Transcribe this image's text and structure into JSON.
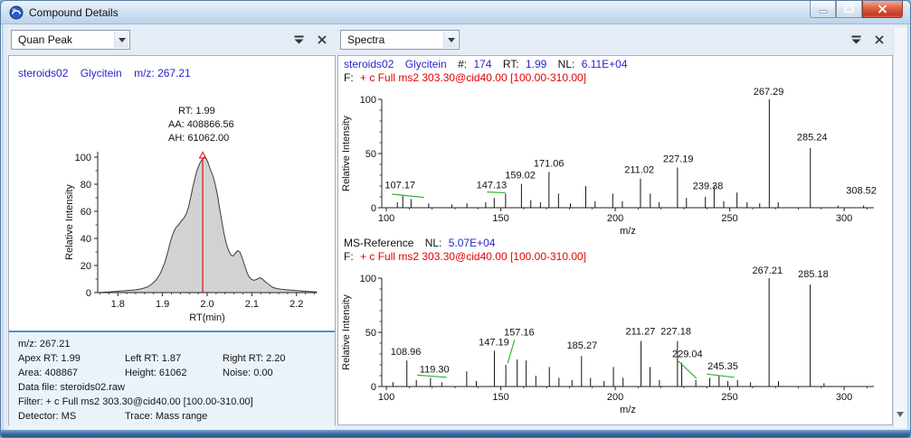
{
  "window": {
    "title": "Compound Details"
  },
  "icons": {
    "app": "xcalibur-logo",
    "dropdown": "chevron-down",
    "panel_menu": "collapse-chevron",
    "panel_close": "x-mark",
    "minimize": "minimize-bar",
    "maximize": "maximize-square",
    "window_close": "x-mark",
    "scroll_down": "triangle-down"
  },
  "left_panel": {
    "selector_value": "Quan Peak",
    "header": {
      "sample": "steroids02",
      "compound": "Glycitein",
      "mz": "m/z: 267.21"
    },
    "annotations": {
      "rt": "RT: 1.99",
      "aa": "AA: 408866.56",
      "ah": "AH: 61062.00"
    },
    "info": {
      "mz": "m/z: 267.21",
      "apex_rt": "Apex RT: 1.99",
      "left_rt": "Left RT: 1.87",
      "right_rt": "Right RT: 2.20",
      "area": "Area: 408867",
      "height": "Height: 61062",
      "noise": "Noise: 0.00",
      "data_file": "Data file: steroids02.raw",
      "filter": "Filter: + c Full ms2 303.30@cid40.00 [100.00-310.00]",
      "detector": "Detector: MS",
      "trace": "Trace: Mass range"
    }
  },
  "right_panel": {
    "selector_value": "Spectra",
    "top_header": {
      "sample": "steroids02",
      "compound": "Glycitein",
      "scan_label": "#:",
      "scan": "174",
      "rt_label": "RT:",
      "rt": "1.99",
      "nl_label": "NL:",
      "nl": "6.11E+04",
      "f_label": "F:",
      "filter": "+ c Full ms2 303.30@cid40.00 [100.00-310.00]"
    },
    "ref_header": {
      "name": "MS-Reference",
      "nl_label": "NL:",
      "nl": "5.07E+04",
      "f_label": "F:",
      "filter": "+ c Full ms2 303.30@cid40.00 [100.00-310.00]"
    }
  },
  "colors": {
    "accent_blue_text": "#2626cc",
    "red_text": "#e60000",
    "green_match": "#2fb52f",
    "peak_fill": "#d2d2d2",
    "marker_red": "#e02020"
  },
  "chart_data": [
    {
      "name": "quan-peak-chromatogram",
      "type": "area",
      "xlabel": "RT(min)",
      "ylabel": "Relative Intensity",
      "xlim": [
        1.755,
        2.245
      ],
      "ylim": [
        0,
        104
      ],
      "xticks": [
        1.8,
        1.9,
        2.0,
        2.1,
        2.2
      ],
      "yticks": [
        0,
        20,
        40,
        60,
        80,
        100
      ],
      "apex_rt": 1.99,
      "marker_x": 1.99,
      "marker_y": 99,
      "points": [
        [
          1.755,
          0
        ],
        [
          1.78,
          0.5
        ],
        [
          1.8,
          1
        ],
        [
          1.82,
          1.5
        ],
        [
          1.84,
          2
        ],
        [
          1.855,
          3
        ],
        [
          1.865,
          4
        ],
        [
          1.875,
          6
        ],
        [
          1.885,
          9
        ],
        [
          1.895,
          14
        ],
        [
          1.905,
          22
        ],
        [
          1.912,
          30
        ],
        [
          1.918,
          38
        ],
        [
          1.924,
          44
        ],
        [
          1.93,
          48
        ],
        [
          1.936,
          50
        ],
        [
          1.942,
          53
        ],
        [
          1.948,
          55
        ],
        [
          1.953,
          58
        ],
        [
          1.958,
          63
        ],
        [
          1.963,
          70
        ],
        [
          1.968,
          78
        ],
        [
          1.973,
          85
        ],
        [
          1.978,
          91
        ],
        [
          1.983,
          95
        ],
        [
          1.988,
          98
        ],
        [
          1.993,
          100
        ],
        [
          1.998,
          99
        ],
        [
          2.003,
          95
        ],
        [
          2.008,
          90
        ],
        [
          2.013,
          86
        ],
        [
          2.018,
          80
        ],
        [
          2.023,
          72
        ],
        [
          2.028,
          62
        ],
        [
          2.033,
          52
        ],
        [
          2.038,
          43
        ],
        [
          2.043,
          36
        ],
        [
          2.048,
          31
        ],
        [
          2.053,
          28
        ],
        [
          2.058,
          27
        ],
        [
          2.063,
          29
        ],
        [
          2.068,
          31
        ],
        [
          2.073,
          30
        ],
        [
          2.078,
          26
        ],
        [
          2.083,
          21
        ],
        [
          2.088,
          16
        ],
        [
          2.093,
          12
        ],
        [
          2.098,
          10
        ],
        [
          2.105,
          9
        ],
        [
          2.112,
          10
        ],
        [
          2.118,
          11
        ],
        [
          2.124,
          10
        ],
        [
          2.13,
          8
        ],
        [
          2.138,
          6
        ],
        [
          2.146,
          4
        ],
        [
          2.155,
          3
        ],
        [
          2.165,
          2.5
        ],
        [
          2.18,
          2
        ],
        [
          2.2,
          1.5
        ],
        [
          2.22,
          1
        ],
        [
          2.245,
          0.5
        ]
      ]
    },
    {
      "name": "ms2-spectrum",
      "type": "bar",
      "xlabel": "m/z",
      "ylabel": "Relative Intensity",
      "xlim": [
        98,
        313
      ],
      "ylim": [
        0,
        100
      ],
      "xticks": [
        100,
        150,
        200,
        250,
        300
      ],
      "yticks": [
        0,
        50,
        100
      ],
      "peaks": [
        {
          "mz": 104.8,
          "i": 5
        },
        {
          "mz": 107.17,
          "i": 11,
          "label": "107.17",
          "lx": 106,
          "ly": 18
        },
        {
          "mz": 110.8,
          "i": 8
        },
        {
          "mz": 118.5,
          "i": 4
        },
        {
          "mz": 128.6,
          "i": 3
        },
        {
          "mz": 135.2,
          "i": 4
        },
        {
          "mz": 143.4,
          "i": 5
        },
        {
          "mz": 147.13,
          "i": 9,
          "label": "147.13",
          "lx": 146,
          "ly": 18
        },
        {
          "mz": 152.1,
          "i": 13
        },
        {
          "mz": 159.02,
          "i": 22,
          "label": "159.02",
          "lx": 158.5,
          "ly": 27
        },
        {
          "mz": 163.1,
          "i": 7
        },
        {
          "mz": 167.3,
          "i": 5
        },
        {
          "mz": 171.06,
          "i": 33,
          "label": "171.06",
          "lx": 171,
          "ly": 38
        },
        {
          "mz": 175.2,
          "i": 13
        },
        {
          "mz": 180.4,
          "i": 4
        },
        {
          "mz": 187.1,
          "i": 20
        },
        {
          "mz": 191.2,
          "i": 6
        },
        {
          "mz": 198.9,
          "i": 13
        },
        {
          "mz": 203.1,
          "i": 6
        },
        {
          "mz": 211.02,
          "i": 27,
          "label": "211.02",
          "lx": 210.5,
          "ly": 32
        },
        {
          "mz": 215.3,
          "i": 13
        },
        {
          "mz": 219.2,
          "i": 5
        },
        {
          "mz": 227.19,
          "i": 37,
          "label": "227.19",
          "lx": 227.5,
          "ly": 42
        },
        {
          "mz": 231.1,
          "i": 9
        },
        {
          "mz": 239.38,
          "i": 10,
          "label": "239.38",
          "lx": 240.5,
          "ly": 17
        },
        {
          "mz": 243.2,
          "i": 20
        },
        {
          "mz": 247.4,
          "i": 6
        },
        {
          "mz": 253.2,
          "i": 14
        },
        {
          "mz": 257.6,
          "i": 5
        },
        {
          "mz": 263.1,
          "i": 4
        },
        {
          "mz": 267.29,
          "i": 100,
          "label": "267.29",
          "lx": 267,
          "ly": 104
        },
        {
          "mz": 271.2,
          "i": 5
        },
        {
          "mz": 285.24,
          "i": 55,
          "label": "285.24",
          "lx": 286,
          "ly": 62
        },
        {
          "mz": 297.3,
          "i": 2
        },
        {
          "mz": 308.52,
          "i": 2,
          "label": "308.52",
          "lx": 307.5,
          "ly": 13
        }
      ],
      "green_lines": [
        [
          102.5,
          12.5,
          116.5,
          9.5
        ],
        [
          144,
          14.5,
          152,
          13.8
        ]
      ]
    },
    {
      "name": "ms2-reference-spectrum",
      "type": "bar",
      "xlabel": "m/z",
      "ylabel": "Relative Intensity",
      "xlim": [
        98,
        313
      ],
      "ylim": [
        0,
        100
      ],
      "xticks": [
        100,
        150,
        200,
        250,
        300
      ],
      "yticks": [
        0,
        50,
        100
      ],
      "peaks": [
        {
          "mz": 102.9,
          "i": 4
        },
        {
          "mz": 108.96,
          "i": 24,
          "label": "108.96",
          "lx": 108.5,
          "ly": 29
        },
        {
          "mz": 113.1,
          "i": 6
        },
        {
          "mz": 119.3,
          "i": 8,
          "label": "119.30",
          "lx": 121,
          "ly": 13
        },
        {
          "mz": 124.2,
          "i": 4
        },
        {
          "mz": 135.1,
          "i": 14
        },
        {
          "mz": 139.3,
          "i": 5
        },
        {
          "mz": 147.19,
          "i": 33,
          "label": "147.19",
          "lx": 147,
          "ly": 38
        },
        {
          "mz": 152.2,
          "i": 20
        },
        {
          "mz": 157.16,
          "i": 25,
          "label": "157.16",
          "lx": 158,
          "ly": 47
        },
        {
          "mz": 161.1,
          "i": 24
        },
        {
          "mz": 165.3,
          "i": 10
        },
        {
          "mz": 171.2,
          "i": 18
        },
        {
          "mz": 175.4,
          "i": 8
        },
        {
          "mz": 181.1,
          "i": 6
        },
        {
          "mz": 185.27,
          "i": 28,
          "label": "185.27",
          "lx": 185.5,
          "ly": 35
        },
        {
          "mz": 189.2,
          "i": 8
        },
        {
          "mz": 195.1,
          "i": 5
        },
        {
          "mz": 199.2,
          "i": 18
        },
        {
          "mz": 203.4,
          "i": 8
        },
        {
          "mz": 211.27,
          "i": 42,
          "label": "211.27",
          "lx": 211,
          "ly": 48
        },
        {
          "mz": 215.2,
          "i": 18
        },
        {
          "mz": 219.3,
          "i": 6
        },
        {
          "mz": 227.18,
          "i": 42,
          "label": "227.18",
          "lx": 226.5,
          "ly": 48
        },
        {
          "mz": 229.04,
          "i": 22,
          "label": "229.04",
          "lx": 231.5,
          "ly": 27
        },
        {
          "mz": 235.2,
          "i": 6
        },
        {
          "mz": 241.3,
          "i": 8
        },
        {
          "mz": 245.35,
          "i": 10,
          "label": "245.35",
          "lx": 247,
          "ly": 16
        },
        {
          "mz": 249.2,
          "i": 5
        },
        {
          "mz": 253.4,
          "i": 6
        },
        {
          "mz": 259.1,
          "i": 4
        },
        {
          "mz": 267.21,
          "i": 100,
          "label": "267.21",
          "lx": 266.5,
          "ly": 104
        },
        {
          "mz": 271.3,
          "i": 5
        },
        {
          "mz": 285.18,
          "i": 94,
          "label": "285.18",
          "lx": 286.5,
          "ly": 101
        },
        {
          "mz": 291.2,
          "i": 3
        }
      ],
      "green_lines": [
        [
          113.5,
          10.5,
          126.5,
          8.5
        ],
        [
          156,
          43,
          153,
          21.5
        ],
        [
          227.5,
          23.5,
          235.5,
          7.5
        ],
        [
          240,
          11.5,
          252,
          8.5
        ]
      ]
    }
  ]
}
